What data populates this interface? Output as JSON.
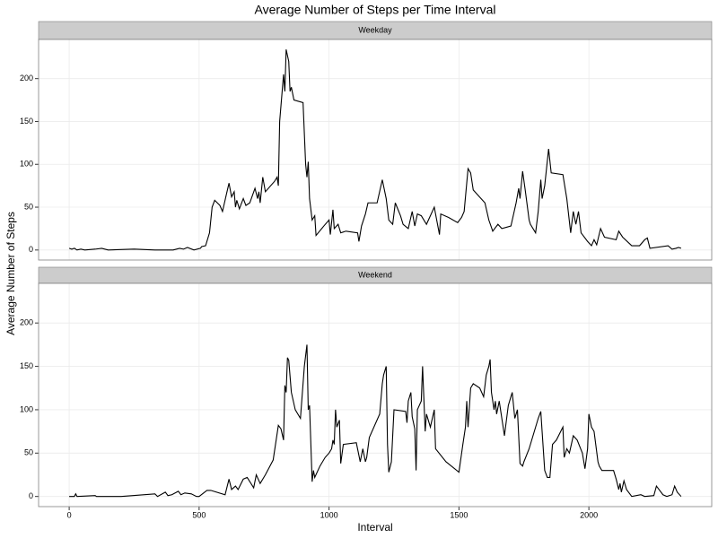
{
  "chart_data": {
    "type": "line",
    "title": "Average Number of Steps per Time Interval",
    "xlabel": "Interval",
    "ylabel": "Average Number of Steps",
    "xlim": [
      -117.75,
      2472.75
    ],
    "ylim": [
      -11.7,
      245.7
    ],
    "xticks": [
      0,
      500,
      1000,
      1500,
      2000
    ],
    "yticks": [
      0,
      50,
      100,
      150,
      200
    ],
    "grid": true,
    "color": "#000000",
    "facets": [
      {
        "name": "Weekday",
        "x": [
          0,
          10,
          20,
          30,
          45,
          60,
          100,
          125,
          150,
          250,
          330,
          400,
          425,
          440,
          455,
          480,
          505,
          510,
          525,
          540,
          550,
          560,
          580,
          590,
          605,
          615,
          625,
          635,
          640,
          645,
          655,
          670,
          680,
          695,
          715,
          725,
          730,
          735,
          745,
          755,
          790,
          800,
          805,
          810,
          825,
          830,
          835,
          845,
          850,
          855,
          865,
          900,
          910,
          915,
          920,
          925,
          935,
          945,
          950,
          980,
          1000,
          1005,
          1015,
          1020,
          1035,
          1045,
          1065,
          1110,
          1115,
          1125,
          1140,
          1150,
          1185,
          1205,
          1220,
          1230,
          1245,
          1255,
          1275,
          1285,
          1305,
          1320,
          1330,
          1340,
          1355,
          1375,
          1390,
          1405,
          1425,
          1430,
          1460,
          1495,
          1510,
          1520,
          1535,
          1545,
          1555,
          1600,
          1615,
          1630,
          1650,
          1665,
          1700,
          1720,
          1730,
          1735,
          1745,
          1755,
          1770,
          1775,
          1795,
          1805,
          1815,
          1820,
          1830,
          1845,
          1855,
          1900,
          1915,
          1930,
          1940,
          1950,
          1960,
          1970,
          1995,
          2010,
          2020,
          2030,
          2045,
          2060,
          2105,
          2115,
          2130,
          2165,
          2195,
          2215,
          2225,
          2235,
          2305,
          2320,
          2335,
          2345,
          2355
        ],
        "values": [
          2,
          1,
          2,
          0,
          1,
          0,
          1,
          2,
          0,
          1,
          0,
          0,
          2,
          1,
          3,
          0,
          2,
          4,
          5,
          20,
          50,
          58,
          52,
          45,
          65,
          78,
          62,
          68,
          50,
          58,
          48,
          60,
          52,
          55,
          72,
          60,
          68,
          55,
          85,
          68,
          80,
          85,
          75,
          150,
          205,
          185,
          234,
          220,
          185,
          190,
          175,
          172,
          100,
          85,
          103,
          60,
          35,
          40,
          17,
          28,
          35,
          18,
          47,
          25,
          30,
          20,
          22,
          20,
          10,
          28,
          42,
          55,
          55,
          82,
          60,
          35,
          30,
          55,
          40,
          30,
          25,
          45,
          28,
          42,
          40,
          30,
          40,
          50,
          18,
          42,
          38,
          32,
          38,
          45,
          95,
          90,
          70,
          55,
          35,
          22,
          30,
          25,
          28,
          55,
          72,
          60,
          92,
          70,
          35,
          30,
          20,
          45,
          82,
          60,
          75,
          118,
          90,
          88,
          60,
          20,
          45,
          30,
          45,
          20,
          10,
          5,
          12,
          6,
          25,
          15,
          12,
          22,
          15,
          5,
          5,
          12,
          14,
          2,
          5,
          1,
          2,
          3,
          2
        ]
      },
      {
        "name": "Weekend",
        "x": [
          0,
          20,
          25,
          30,
          100,
          105,
          200,
          330,
          340,
          370,
          380,
          395,
          420,
          430,
          445,
          470,
          490,
          500,
          530,
          545,
          600,
          615,
          625,
          640,
          650,
          670,
          685,
          710,
          720,
          735,
          755,
          785,
          805,
          815,
          825,
          830,
          835,
          840,
          845,
          855,
          870,
          890,
          905,
          915,
          920,
          925,
          935,
          940,
          945,
          965,
          985,
          1000,
          1010,
          1015,
          1020,
          1025,
          1030,
          1040,
          1045,
          1055,
          1105,
          1120,
          1130,
          1140,
          1145,
          1155,
          1195,
          1205,
          1210,
          1220,
          1225,
          1230,
          1240,
          1250,
          1295,
          1300,
          1305,
          1315,
          1320,
          1330,
          1335,
          1340,
          1355,
          1360,
          1370,
          1375,
          1390,
          1405,
          1410,
          1450,
          1500,
          1515,
          1525,
          1530,
          1535,
          1545,
          1555,
          1580,
          1595,
          1605,
          1615,
          1620,
          1625,
          1635,
          1640,
          1645,
          1655,
          1675,
          1690,
          1700,
          1705,
          1715,
          1725,
          1735,
          1745,
          1750,
          1770,
          1805,
          1815,
          1820,
          1830,
          1840,
          1850,
          1860,
          1875,
          1900,
          1905,
          1915,
          1925,
          1940,
          1955,
          1975,
          1985,
          1995,
          2000,
          2010,
          2020,
          2035,
          2040,
          2050,
          2095,
          2105,
          2115,
          2120,
          2125,
          2135,
          2145,
          2165,
          2200,
          2215,
          2250,
          2260,
          2270,
          2285,
          2300,
          2320,
          2330,
          2340,
          2355
        ],
        "values": [
          0,
          0,
          3,
          0,
          1,
          0,
          0,
          3,
          0,
          5,
          1,
          2,
          6,
          2,
          4,
          3,
          0,
          0,
          7,
          7,
          2,
          20,
          8,
          12,
          8,
          20,
          22,
          10,
          25,
          15,
          25,
          42,
          82,
          78,
          65,
          128,
          120,
          160,
          157,
          120,
          100,
          90,
          150,
          175,
          100,
          105,
          17,
          30,
          22,
          35,
          45,
          50,
          55,
          65,
          60,
          100,
          80,
          88,
          38,
          60,
          62,
          40,
          55,
          40,
          45,
          68,
          95,
          130,
          140,
          150,
          60,
          28,
          40,
          100,
          98,
          85,
          110,
          120,
          92,
          78,
          30,
          100,
          110,
          150,
          75,
          95,
          80,
          100,
          55,
          40,
          28,
          60,
          80,
          110,
          80,
          125,
          130,
          125,
          115,
          140,
          150,
          158,
          120,
          100,
          110,
          95,
          110,
          70,
          105,
          115,
          120,
          90,
          100,
          38,
          35,
          40,
          55,
          90,
          98,
          75,
          30,
          22,
          22,
          60,
          65,
          80,
          45,
          55,
          50,
          70,
          65,
          50,
          32,
          55,
          95,
          80,
          75,
          40,
          35,
          30,
          30,
          20,
          8,
          15,
          5,
          18,
          8,
          0,
          2,
          0,
          1,
          12,
          8,
          2,
          0,
          2,
          12,
          5,
          0
        ]
      }
    ]
  }
}
